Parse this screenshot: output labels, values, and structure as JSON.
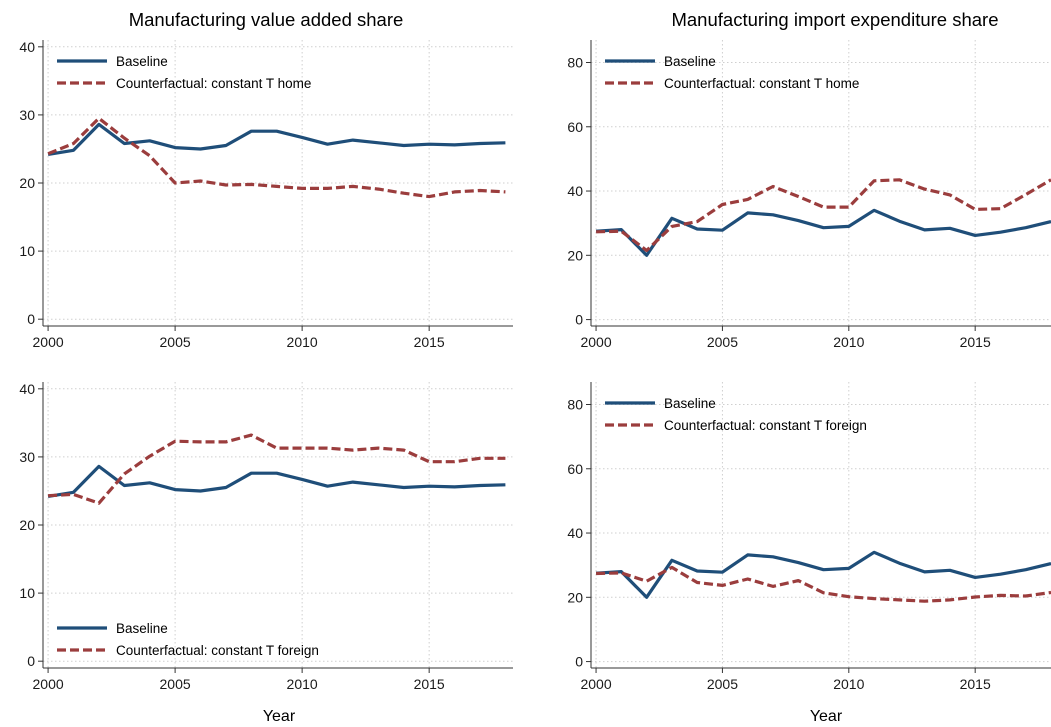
{
  "figure": {
    "col_titles": [
      "Manufacturing value added share",
      "Manufacturing import expenditure share"
    ],
    "xlabel": "Year"
  },
  "colors": {
    "baseline": "#1f4e79",
    "counterfactual": "#9b3d3d"
  },
  "chart_data": [
    {
      "type": "line",
      "title": "",
      "x": [
        2000,
        2001,
        2002,
        2003,
        2004,
        2005,
        2006,
        2007,
        2008,
        2009,
        2010,
        2011,
        2012,
        2013,
        2014,
        2015,
        2016,
        2017,
        2018
      ],
      "xlim": [
        1999.8,
        2018.3
      ],
      "xticks": [
        2000,
        2005,
        2010,
        2015
      ],
      "ylim": [
        -1,
        41
      ],
      "yticks": [
        0,
        10,
        20,
        30,
        40
      ],
      "legend_position": "top-left",
      "series": [
        {
          "name": "Baseline",
          "style": "solid",
          "values": [
            24.2,
            24.8,
            28.6,
            25.8,
            26.2,
            25.2,
            25.0,
            25.5,
            27.6,
            27.6,
            26.7,
            25.7,
            26.3,
            25.9,
            25.5,
            25.7,
            25.6,
            25.8,
            25.9
          ]
        },
        {
          "name": "Counterfactual: constant T home",
          "style": "dashed",
          "values": [
            24.3,
            25.8,
            29.5,
            26.6,
            24.0,
            20.0,
            20.3,
            19.7,
            19.8,
            19.5,
            19.2,
            19.2,
            19.5,
            19.1,
            18.5,
            18.0,
            18.7,
            18.9,
            18.7
          ]
        }
      ]
    },
    {
      "type": "line",
      "title": "",
      "x": [
        2000,
        2001,
        2002,
        2003,
        2004,
        2005,
        2006,
        2007,
        2008,
        2009,
        2010,
        2011,
        2012,
        2013,
        2014,
        2015,
        2016,
        2017,
        2018
      ],
      "xlim": [
        1999.8,
        2018.0
      ],
      "xticks": [
        2000,
        2005,
        2010,
        2015
      ],
      "ylim": [
        -2,
        87
      ],
      "yticks": [
        0,
        20,
        40,
        60,
        80
      ],
      "legend_position": "top-left",
      "series": [
        {
          "name": "Baseline",
          "style": "solid",
          "values": [
            27.5,
            28.0,
            20.0,
            31.5,
            28.2,
            27.8,
            33.2,
            32.6,
            30.8,
            28.6,
            29.0,
            34.0,
            30.6,
            27.9,
            28.4,
            26.2,
            27.2,
            28.6,
            30.5
          ]
        },
        {
          "name": "Counterfactual: constant T home",
          "style": "dashed",
          "values": [
            27.3,
            27.5,
            21.5,
            29.0,
            30.5,
            35.8,
            37.4,
            41.4,
            38.3,
            35.0,
            35.0,
            43.2,
            43.5,
            40.6,
            38.8,
            34.3,
            34.5,
            38.9,
            43.5
          ]
        }
      ]
    },
    {
      "type": "line",
      "title": "",
      "x": [
        2000,
        2001,
        2002,
        2003,
        2004,
        2005,
        2006,
        2007,
        2008,
        2009,
        2010,
        2011,
        2012,
        2013,
        2014,
        2015,
        2016,
        2017,
        2018
      ],
      "xlim": [
        1999.8,
        2018.3
      ],
      "xticks": [
        2000,
        2005,
        2010,
        2015
      ],
      "ylim": [
        -1,
        41
      ],
      "yticks": [
        0,
        10,
        20,
        30,
        40
      ],
      "legend_position": "bottom-left",
      "series": [
        {
          "name": "Baseline",
          "style": "solid",
          "values": [
            24.2,
            24.8,
            28.6,
            25.8,
            26.2,
            25.2,
            25.0,
            25.5,
            27.6,
            27.6,
            26.7,
            25.7,
            26.3,
            25.9,
            25.5,
            25.7,
            25.6,
            25.8,
            25.9
          ]
        },
        {
          "name": "Counterfactual: constant T foreign",
          "style": "dashed",
          "values": [
            24.3,
            24.5,
            23.2,
            27.5,
            30.1,
            32.3,
            32.2,
            32.2,
            33.2,
            31.3,
            31.3,
            31.3,
            31.0,
            31.3,
            31.0,
            29.3,
            29.3,
            29.8,
            29.8
          ]
        }
      ]
    },
    {
      "type": "line",
      "title": "",
      "x": [
        2000,
        2001,
        2002,
        2003,
        2004,
        2005,
        2006,
        2007,
        2008,
        2009,
        2010,
        2011,
        2012,
        2013,
        2014,
        2015,
        2016,
        2017,
        2018
      ],
      "xlim": [
        1999.8,
        2018.0
      ],
      "xticks": [
        2000,
        2005,
        2010,
        2015
      ],
      "ylim": [
        -2,
        87
      ],
      "yticks": [
        0,
        20,
        40,
        60,
        80
      ],
      "legend_position": "top-left",
      "series": [
        {
          "name": "Baseline",
          "style": "solid",
          "values": [
            27.5,
            28.0,
            20.0,
            31.5,
            28.2,
            27.8,
            33.2,
            32.6,
            30.8,
            28.6,
            29.0,
            34.0,
            30.6,
            27.9,
            28.4,
            26.2,
            27.2,
            28.6,
            30.5
          ]
        },
        {
          "name": "Counterfactual: constant T foreign",
          "style": "dashed",
          "values": [
            27.4,
            27.6,
            25.0,
            29.3,
            24.6,
            23.7,
            25.7,
            23.4,
            25.2,
            21.4,
            20.2,
            19.6,
            19.2,
            18.8,
            19.2,
            20.1,
            20.6,
            20.4,
            21.5
          ]
        }
      ]
    }
  ]
}
